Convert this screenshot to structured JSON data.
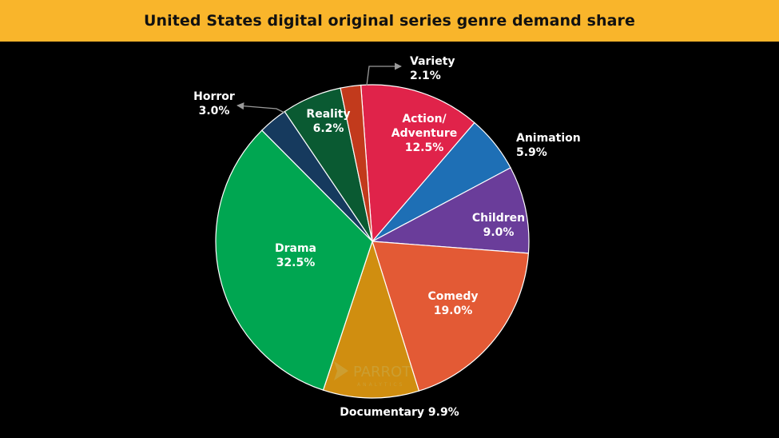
{
  "colors": {
    "background": "#000000",
    "title_bar": "#f9b52b",
    "title_text": "#111111",
    "label_text": "#ffffff",
    "watermark": "#8a7a3a"
  },
  "chart_data": {
    "type": "pie",
    "title": "United States digital original series genre demand share",
    "slices": [
      {
        "category": "Action/ Adventure",
        "lines": [
          "Action/",
          "Adventure"
        ],
        "value": 12.5,
        "value_label": "12.5%",
        "color": "#e0234a",
        "label_inside": true
      },
      {
        "category": "Animation",
        "lines": [
          "Animation"
        ],
        "value": 5.9,
        "value_label": "5.9%",
        "color": "#1e6fb5",
        "label_inside": false
      },
      {
        "category": "Children",
        "lines": [
          "Children"
        ],
        "value": 9.0,
        "value_label": "9.0%",
        "color": "#6a3d9a",
        "label_inside": true
      },
      {
        "category": "Comedy",
        "lines": [
          "Comedy"
        ],
        "value": 19.0,
        "value_label": "19.0%",
        "color": "#e35a35",
        "label_inside": true
      },
      {
        "category": "Documentary",
        "lines": [
          "Documentary"
        ],
        "value": 9.9,
        "value_label": "9.9%",
        "color": "#d08e10",
        "label_inside": false
      },
      {
        "category": "Drama",
        "lines": [
          "Drama"
        ],
        "value": 32.5,
        "value_label": "32.5%",
        "color": "#00a651",
        "label_inside": true
      },
      {
        "category": "Horror",
        "lines": [
          "Horror"
        ],
        "value": 3.0,
        "value_label": "3.0%",
        "color": "#163a5e",
        "label_inside": false
      },
      {
        "category": "Reality",
        "lines": [
          "Reality"
        ],
        "value": 6.2,
        "value_label": "6.2%",
        "color": "#0a5a32",
        "label_inside": true
      },
      {
        "category": "Variety",
        "lines": [
          "Variety"
        ],
        "value": 2.1,
        "value_label": "2.1%",
        "color": "#c23a1c",
        "label_inside": false
      }
    ],
    "start_angle_deg": -4.2,
    "direction": "clockwise"
  },
  "watermark": {
    "text": "PARROT",
    "subtext": "ANALYTICS"
  }
}
